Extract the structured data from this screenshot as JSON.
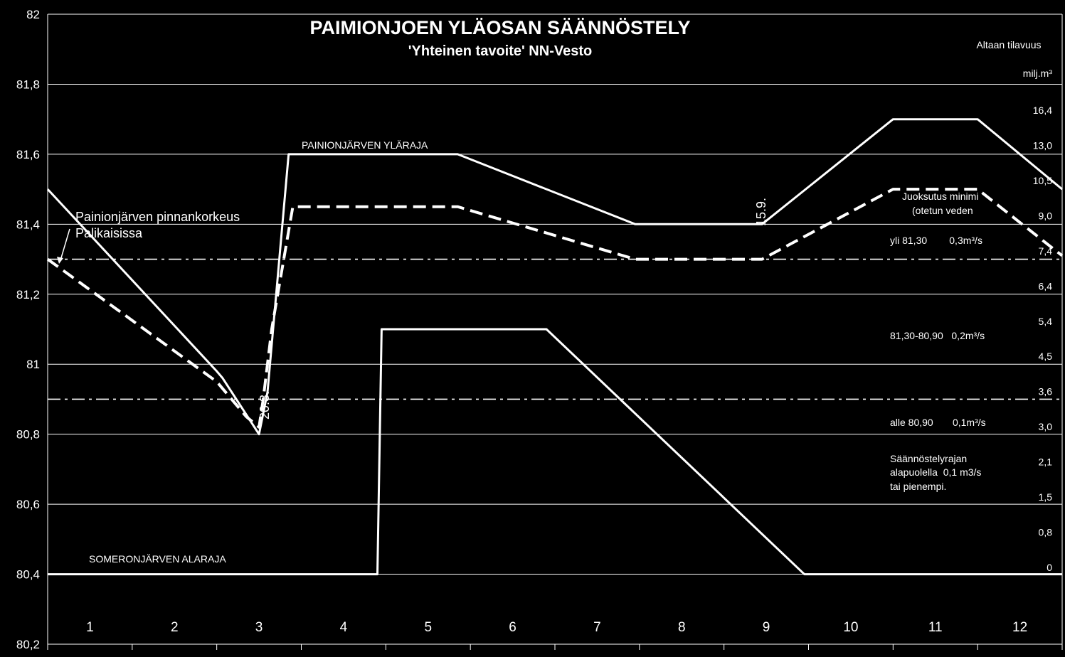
{
  "chart_data": {
    "type": "line",
    "title": "PAIMIONJOEN YLÄOSAN SÄÄNNÖSTELY",
    "subtitle": "'Yhteinen tavoite' NN-Vesto",
    "xlabel": "",
    "ylabel": "",
    "xlim": [
      0.5,
      12.5
    ],
    "ylim": [
      80.2,
      82
    ],
    "y_ticks": [
      "80,2",
      "80,4",
      "80,6",
      "80,8",
      "81",
      "81,2",
      "81,4",
      "81,6",
      "81,8",
      "82"
    ],
    "x_ticks": [
      "1",
      "2",
      "3",
      "4",
      "5",
      "6",
      "7",
      "8",
      "9",
      "10",
      "11",
      "12"
    ],
    "grid": true,
    "series": [
      {
        "name": "PAINIONJÄRVEN YLÄRAJA",
        "style": "solid",
        "points": [
          [
            0.5,
            81.5
          ],
          [
            2.5,
            80.98
          ],
          [
            2.57,
            80.96
          ],
          [
            3.0,
            80.8
          ],
          [
            3.1,
            80.92
          ],
          [
            3.35,
            81.6
          ],
          [
            5.35,
            81.6
          ],
          [
            7.45,
            81.4
          ],
          [
            8.95,
            81.4
          ],
          [
            10.5,
            81.7
          ],
          [
            11.5,
            81.7
          ],
          [
            12.5,
            81.5
          ]
        ]
      },
      {
        "name": "Painionjärven pinnankorkeus Palikaisissa",
        "style": "dashed",
        "points": [
          [
            0.5,
            81.3
          ],
          [
            2.5,
            80.95
          ],
          [
            2.85,
            80.85
          ],
          [
            3.0,
            80.82
          ],
          [
            3.05,
            80.9
          ],
          [
            3.15,
            81.1
          ],
          [
            3.4,
            81.45
          ],
          [
            5.35,
            81.45
          ],
          [
            7.45,
            81.3
          ],
          [
            8.95,
            81.3
          ],
          [
            10.5,
            81.5
          ],
          [
            11.5,
            81.5
          ],
          [
            12.5,
            81.31
          ]
        ]
      },
      {
        "name": "SOMERONJÄRVEN ALARAJA",
        "style": "solid",
        "points": [
          [
            0.5,
            80.4
          ],
          [
            4.4,
            80.4
          ],
          [
            4.45,
            81.1
          ],
          [
            6.4,
            81.1
          ],
          [
            9.45,
            80.4
          ],
          [
            12.5,
            80.4
          ]
        ]
      }
    ],
    "reference_lines": [
      {
        "y": 81.3,
        "style": "dashdot"
      },
      {
        "y": 80.9,
        "style": "dashdot"
      }
    ],
    "right_axis": {
      "label_line1": "Altaan tilavuus",
      "label_line2": "milj.m³",
      "values": [
        "16,4",
        "13,0",
        "10,5",
        "9,0",
        "7,4",
        "6,4",
        "5,4",
        "4,5",
        "3,6",
        "3,0",
        "2,1",
        "1,5",
        "0,8",
        "0"
      ]
    },
    "annotations": {
      "upper_limit": "PAINIONJÄRVEN YLÄRAJA",
      "lower_limit": "SOMERONJÄRVEN ALARAJA",
      "level_line1": "Painionjärven pinnankorkeus",
      "level_line2": "Palikaisissa",
      "date_march": "20.3.",
      "date_sept": "15.9.",
      "flow_title1": "Juoksutus minimi",
      "flow_title2": "(otetun veden",
      "flow_high": "yli 81,30        0,3m³/s",
      "flow_mid": "81,30-80,90   0,2m³/s",
      "flow_low": "alle 80,90       0,1m³/s",
      "flow_below1": "Säännöstelyrajan",
      "flow_below2": "alapuolella  0,1 m3/s",
      "flow_below3": "tai pienempi."
    }
  }
}
